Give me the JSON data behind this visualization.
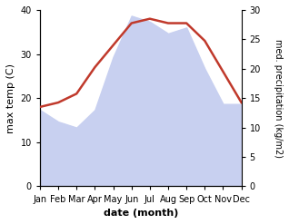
{
  "months": [
    "Jan",
    "Feb",
    "Mar",
    "Apr",
    "May",
    "Jun",
    "Jul",
    "Aug",
    "Sep",
    "Oct",
    "Nov",
    "Dec"
  ],
  "max_temp": [
    18,
    19,
    21,
    27,
    32,
    37,
    38,
    37,
    37,
    33,
    26,
    19
  ],
  "precipitation": [
    13,
    11,
    10,
    13,
    22,
    29,
    28,
    26,
    27,
    20,
    14,
    14
  ],
  "temp_color": "#c0392b",
  "precip_fill_color": "#c8d0f0",
  "xlabel": "date (month)",
  "ylabel_left": "max temp (C)",
  "ylabel_right": "med. precipitation (kg/m2)",
  "ylim_left": [
    0,
    40
  ],
  "ylim_right": [
    0,
    30
  ],
  "yticks_left": [
    0,
    10,
    20,
    30,
    40
  ],
  "yticks_right": [
    0,
    5,
    10,
    15,
    20,
    25,
    30
  ],
  "bg_color": "#ffffff",
  "line_width": 1.8
}
